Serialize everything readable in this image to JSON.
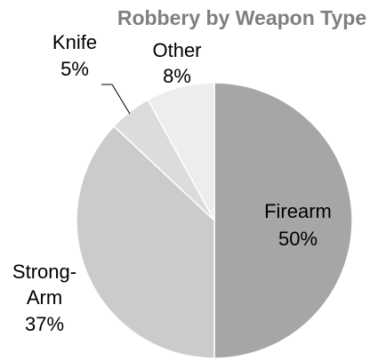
{
  "chart_data": {
    "type": "pie",
    "title": "Robbery by Weapon Type",
    "slices": [
      {
        "label": "Firearm",
        "value": 50,
        "value_label": "50%",
        "color": "#a6a6a6"
      },
      {
        "label": "Strong-Arm",
        "value": 37,
        "value_label": "37%",
        "color": "#cbcbcb"
      },
      {
        "label": "Knife",
        "value": 5,
        "value_label": "5%",
        "color": "#dcdcdc"
      },
      {
        "label": "Other",
        "value": 8,
        "value_label": "8%",
        "color": "#ededed"
      }
    ],
    "strong_arm_label_lines": [
      "Strong-",
      "Arm"
    ]
  }
}
